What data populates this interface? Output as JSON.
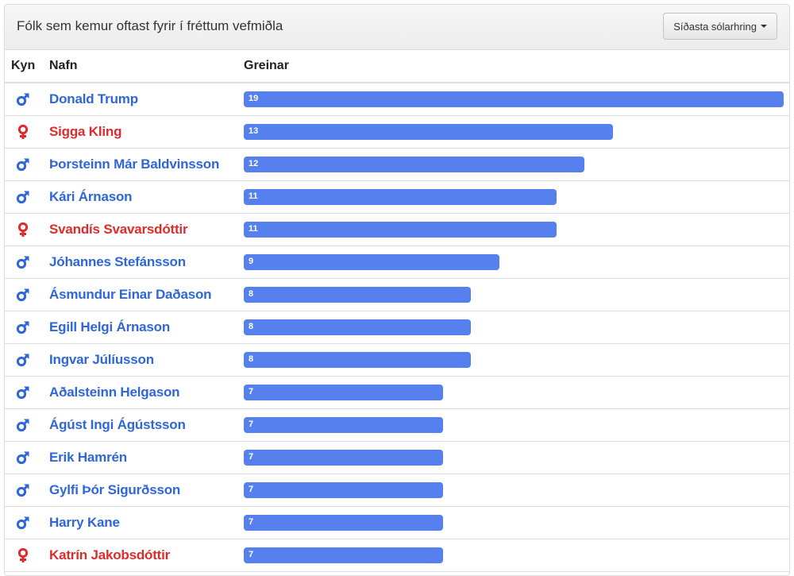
{
  "header": {
    "title": "Fólk sem kemur oftast fyrir í fréttum vefmiðla",
    "period_button": "Síðasta sólarhring"
  },
  "table": {
    "columns": [
      "Kyn",
      "Nafn",
      "Greinar"
    ],
    "max_articles": 19,
    "rows": [
      {
        "gender": "male",
        "name": "Donald Trump",
        "articles": 19
      },
      {
        "gender": "female",
        "name": "Sigga Kling",
        "articles": 13
      },
      {
        "gender": "male",
        "name": "Þorsteinn Már Baldvinsson",
        "articles": 12
      },
      {
        "gender": "male",
        "name": "Kári Árnason",
        "articles": 11
      },
      {
        "gender": "female",
        "name": "Svandís Svavarsdóttir",
        "articles": 11
      },
      {
        "gender": "male",
        "name": "Jóhannes Stefánsson",
        "articles": 9
      },
      {
        "gender": "male",
        "name": "Ásmundur Einar Daðason",
        "articles": 8
      },
      {
        "gender": "male",
        "name": "Egill Helgi Árnason",
        "articles": 8
      },
      {
        "gender": "male",
        "name": "Ingvar Júlíusson",
        "articles": 8
      },
      {
        "gender": "male",
        "name": "Aðalsteinn Helgason",
        "articles": 7
      },
      {
        "gender": "male",
        "name": "Ágúst Ingi Ágústsson",
        "articles": 7
      },
      {
        "gender": "male",
        "name": "Erik Hamrén",
        "articles": 7
      },
      {
        "gender": "male",
        "name": "Gylfi Þór Sigurðsson",
        "articles": 7
      },
      {
        "gender": "male",
        "name": "Harry Kane",
        "articles": 7
      },
      {
        "gender": "female",
        "name": "Katrín Jakobsdóttir",
        "articles": 7
      }
    ]
  },
  "colors": {
    "male": "#2f66d8",
    "female": "#de2b2b",
    "bar": "#5580ee"
  }
}
